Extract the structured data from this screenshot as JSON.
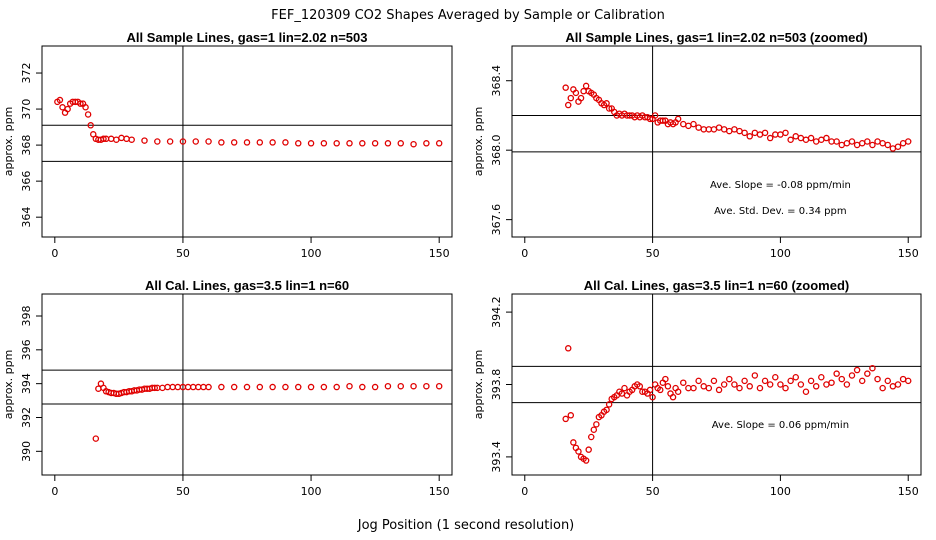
{
  "figure": {
    "title": "FEF_120309  CO2 Shapes Averaged by Sample or Calibration",
    "xlabel": "Jog Position (1 second resolution)"
  },
  "chart_data": [
    {
      "type": "scatter",
      "title": "All Sample Lines, gas=1 lin=2.02 n=503",
      "ylabel": "approx. ppm",
      "xlim": [
        -5,
        155
      ],
      "ylim": [
        362.9,
        373.5
      ],
      "xticks": [
        0,
        50,
        100,
        150
      ],
      "yticks": [
        364,
        366,
        368,
        370,
        372
      ],
      "vline": 50,
      "hlines": [
        367.1,
        369.1
      ],
      "annotations": [],
      "series": [
        {
          "x": [
            1,
            2,
            3,
            4,
            5,
            6,
            7,
            8,
            9,
            10,
            11,
            12,
            13,
            14,
            15,
            16,
            17,
            18,
            19,
            20,
            22,
            24,
            26,
            28,
            30,
            35,
            40,
            45,
            50,
            55,
            60,
            65,
            70,
            75,
            80,
            85,
            90,
            95,
            100,
            105,
            110,
            115,
            120,
            125,
            130,
            135,
            140,
            145,
            150
          ],
          "y": [
            370.4,
            370.5,
            370.1,
            369.8,
            370.0,
            370.3,
            370.4,
            370.4,
            370.4,
            370.3,
            370.3,
            370.1,
            369.7,
            369.1,
            368.6,
            368.35,
            368.3,
            368.3,
            368.35,
            368.35,
            368.35,
            368.3,
            368.4,
            368.35,
            368.3,
            368.25,
            368.2,
            368.2,
            368.2,
            368.2,
            368.2,
            368.15,
            368.15,
            368.15,
            368.15,
            368.15,
            368.15,
            368.1,
            368.1,
            368.1,
            368.1,
            368.1,
            368.1,
            368.1,
            368.1,
            368.1,
            368.05,
            368.1,
            368.1
          ]
        }
      ]
    },
    {
      "type": "scatter",
      "title": "All Sample Lines, gas=1 lin=2.02 n=503 (zoomed)",
      "ylabel": "approx. ppm",
      "xlim": [
        -5,
        155
      ],
      "ylim": [
        367.5,
        368.6
      ],
      "xticks": [
        0,
        50,
        100,
        150
      ],
      "yticks": [
        367.6,
        368.0,
        368.4
      ],
      "vline": 50,
      "hlines": [
        367.99,
        368.2
      ],
      "annotations": [
        "Ave. Slope =  -0.08  ppm/min",
        "Ave. Std. Dev. =  0.34  ppm"
      ],
      "series": [
        {
          "x": [
            16,
            17,
            18,
            19,
            20,
            21,
            22,
            23,
            24,
            25,
            26,
            27,
            28,
            29,
            30,
            31,
            32,
            33,
            34,
            35,
            36,
            37,
            38,
            39,
            40,
            41,
            42,
            43,
            44,
            45,
            46,
            47,
            48,
            49,
            50,
            51,
            52,
            53,
            54,
            55,
            56,
            57,
            58,
            59,
            60,
            62,
            64,
            66,
            68,
            70,
            72,
            74,
            76,
            78,
            80,
            82,
            84,
            86,
            88,
            90,
            92,
            94,
            96,
            98,
            100,
            102,
            104,
            106,
            108,
            110,
            112,
            114,
            116,
            118,
            120,
            122,
            124,
            126,
            128,
            130,
            132,
            134,
            136,
            138,
            140,
            142,
            144,
            146,
            148,
            150
          ],
          "y": [
            368.36,
            368.26,
            368.3,
            368.35,
            368.33,
            368.28,
            368.3,
            368.34,
            368.37,
            368.34,
            368.33,
            368.32,
            368.3,
            368.29,
            368.27,
            368.26,
            368.27,
            368.24,
            368.24,
            368.22,
            368.2,
            368.21,
            368.2,
            368.21,
            368.2,
            368.2,
            368.2,
            368.19,
            368.2,
            368.19,
            368.2,
            368.19,
            368.19,
            368.18,
            368.18,
            368.2,
            368.16,
            368.17,
            368.17,
            368.17,
            368.15,
            368.16,
            368.15,
            368.16,
            368.18,
            368.15,
            368.14,
            368.15,
            368.13,
            368.12,
            368.12,
            368.12,
            368.13,
            368.12,
            368.11,
            368.12,
            368.11,
            368.1,
            368.08,
            368.1,
            368.09,
            368.1,
            368.07,
            368.09,
            368.09,
            368.1,
            368.06,
            368.08,
            368.07,
            368.06,
            368.07,
            368.05,
            368.06,
            368.07,
            368.05,
            368.05,
            368.03,
            368.04,
            368.05,
            368.03,
            368.04,
            368.05,
            368.03,
            368.05,
            368.04,
            368.03,
            368.01,
            368.02,
            368.04,
            368.05
          ]
        }
      ]
    },
    {
      "type": "scatter",
      "title": "All Cal. Lines, gas=3.5 lin=1 n=60",
      "ylabel": "approx. ppm",
      "xlim": [
        -5,
        155
      ],
      "ylim": [
        388.6,
        399.3
      ],
      "xticks": [
        0,
        50,
        100,
        150
      ],
      "yticks": [
        390,
        392,
        394,
        396,
        398
      ],
      "vline": 50,
      "hlines": [
        392.8,
        394.8
      ],
      "annotations": [],
      "series": [
        {
          "x": [
            16,
            17,
            18,
            19,
            20,
            21,
            22,
            23,
            24,
            25,
            26,
            27,
            28,
            29,
            30,
            31,
            32,
            33,
            34,
            35,
            36,
            37,
            38,
            39,
            40,
            42,
            44,
            46,
            48,
            50,
            52,
            54,
            56,
            58,
            60,
            65,
            70,
            75,
            80,
            85,
            90,
            95,
            100,
            105,
            110,
            115,
            120,
            125,
            130,
            135,
            140,
            145,
            150
          ],
          "y": [
            390.75,
            393.7,
            394.0,
            393.75,
            393.55,
            393.5,
            393.45,
            393.45,
            393.4,
            393.4,
            393.45,
            393.5,
            393.5,
            393.55,
            393.55,
            393.6,
            393.6,
            393.65,
            393.65,
            393.7,
            393.7,
            393.7,
            393.75,
            393.75,
            393.75,
            393.75,
            393.8,
            393.8,
            393.8,
            393.8,
            393.8,
            393.8,
            393.8,
            393.8,
            393.8,
            393.8,
            393.8,
            393.8,
            393.8,
            393.8,
            393.8,
            393.8,
            393.8,
            393.8,
            393.8,
            393.85,
            393.8,
            393.8,
            393.85,
            393.85,
            393.85,
            393.85,
            393.85
          ]
        }
      ]
    },
    {
      "type": "scatter",
      "title": "All Cal. Lines, gas=3.5 lin=1 n=60 (zoomed)",
      "ylabel": "approx. ppm",
      "xlim": [
        -5,
        155
      ],
      "ylim": [
        393.3,
        394.3
      ],
      "xticks": [
        0,
        50,
        100,
        150
      ],
      "yticks": [
        393.4,
        393.8,
        394.2
      ],
      "vline": 50,
      "hlines": [
        393.7,
        393.9
      ],
      "annotations": [
        "Ave. Slope =  0.06  ppm/min"
      ],
      "series": [
        {
          "x": [
            16,
            17,
            18,
            19,
            20,
            21,
            22,
            23,
            24,
            25,
            26,
            27,
            28,
            29,
            30,
            31,
            32,
            33,
            34,
            35,
            36,
            37,
            38,
            39,
            40,
            41,
            42,
            43,
            44,
            45,
            46,
            47,
            48,
            49,
            50,
            51,
            52,
            53,
            54,
            55,
            56,
            57,
            58,
            59,
            60,
            62,
            64,
            66,
            68,
            70,
            72,
            74,
            76,
            78,
            80,
            82,
            84,
            86,
            88,
            90,
            92,
            94,
            96,
            98,
            100,
            102,
            104,
            106,
            108,
            110,
            112,
            114,
            116,
            118,
            120,
            122,
            124,
            126,
            128,
            130,
            132,
            134,
            136,
            138,
            140,
            142,
            144,
            146,
            148,
            150
          ],
          "y": [
            393.61,
            394.0,
            393.63,
            393.48,
            393.45,
            393.43,
            393.4,
            393.39,
            393.38,
            393.44,
            393.51,
            393.55,
            393.58,
            393.62,
            393.63,
            393.65,
            393.66,
            393.69,
            393.72,
            393.73,
            393.74,
            393.76,
            393.75,
            393.78,
            393.74,
            393.76,
            393.77,
            393.79,
            393.8,
            393.79,
            393.76,
            393.76,
            393.75,
            393.77,
            393.73,
            393.8,
            393.78,
            393.77,
            393.81,
            393.83,
            393.79,
            393.75,
            393.73,
            393.78,
            393.76,
            393.81,
            393.78,
            393.78,
            393.82,
            393.79,
            393.78,
            393.82,
            393.77,
            393.8,
            393.83,
            393.8,
            393.78,
            393.82,
            393.79,
            393.85,
            393.78,
            393.82,
            393.8,
            393.84,
            393.8,
            393.78,
            393.82,
            393.84,
            393.8,
            393.76,
            393.82,
            393.79,
            393.84,
            393.8,
            393.81,
            393.86,
            393.83,
            393.8,
            393.85,
            393.88,
            393.82,
            393.86,
            393.89,
            393.83,
            393.78,
            393.82,
            393.79,
            393.8,
            393.83,
            393.82
          ]
        }
      ]
    }
  ]
}
